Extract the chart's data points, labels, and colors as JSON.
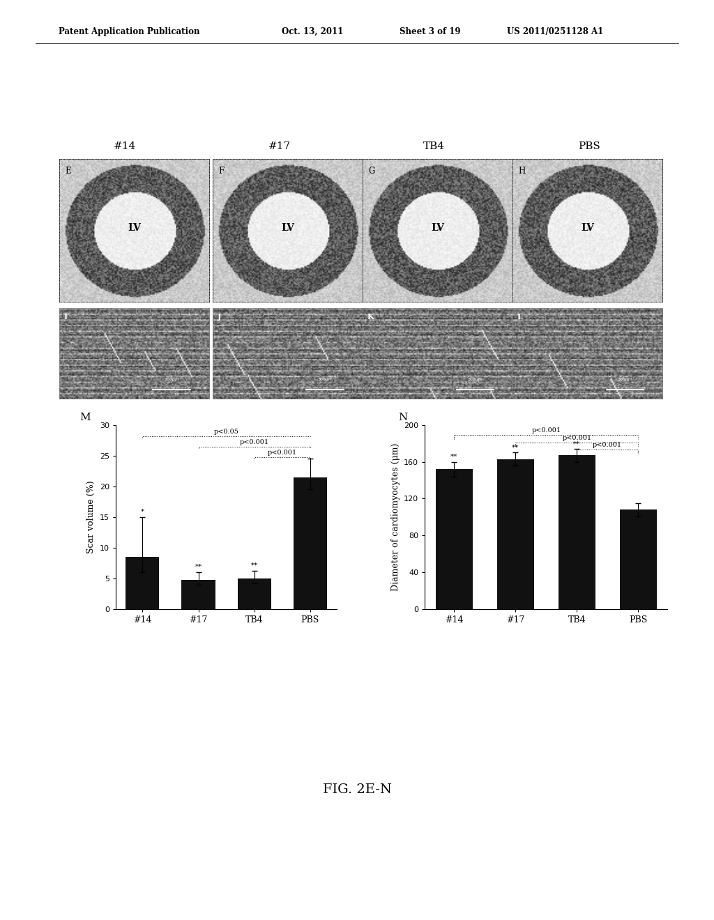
{
  "header_text": "Patent Application Publication",
  "header_date": "Oct. 13, 2011",
  "header_sheet": "Sheet 3 of 19",
  "header_patent": "US 2011/0251128 A1",
  "panel_labels_row1": [
    "E",
    "F",
    "G",
    "H"
  ],
  "panel_labels_row2": [
    "I",
    "J",
    "K",
    "L"
  ],
  "panel_titles": [
    "#14",
    "#17",
    "TB4",
    "PBS"
  ],
  "lv_label": "LV",
  "fig_label": "FIG. 2E-N",
  "chart_M_label": "M",
  "chart_N_label": "N",
  "categories": [
    "#14",
    "#17",
    "TB4",
    "PBS"
  ],
  "scar_values": [
    8.5,
    4.8,
    5.0,
    21.5
  ],
  "scar_errors_up": [
    6.5,
    1.2,
    1.2,
    3.0
  ],
  "scar_errors_dn": [
    2.5,
    0.8,
    0.8,
    2.0
  ],
  "scar_ylabel": "Scar volume (%)",
  "scar_ylim": [
    0,
    30
  ],
  "scar_yticks": [
    0,
    5,
    10,
    15,
    20,
    25,
    30
  ],
  "diam_values": [
    152,
    163,
    167,
    108
  ],
  "diam_errors_up": [
    8,
    7,
    7,
    7
  ],
  "diam_errors_dn": [
    8,
    7,
    7,
    7
  ],
  "diam_ylabel": "Diameter of cardiomyocytes (μm)",
  "diam_ylim": [
    0,
    200
  ],
  "diam_yticks": [
    0,
    40,
    80,
    120,
    160,
    200
  ],
  "bar_color": "#111111",
  "sig_markers_scar": [
    "*",
    "**",
    "**"
  ],
  "sig_markers_diam": [
    "**",
    "**",
    "**"
  ],
  "pval_M_1": "p<0.05",
  "pval_M_2": "p<0.001",
  "pval_M_3": "p<0.001",
  "pval_N_1": "p<0.001",
  "pval_N_2": "p<0.001",
  "pval_N_3": "p<0.001"
}
